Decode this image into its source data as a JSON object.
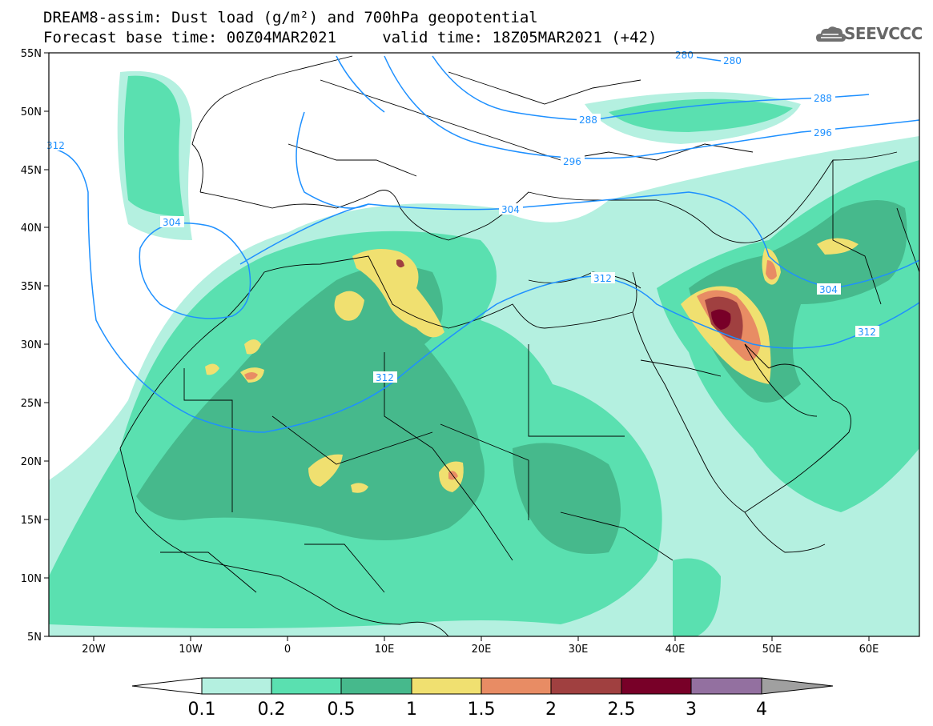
{
  "title": {
    "line1": "DREAM8-assim: Dust load (g/m²) and 700hPa geopotential",
    "line2": "Forecast base time: 00Z04MAR2021     valid time: 18Z05MAR2021 (+42)"
  },
  "logo": {
    "text": "SEEVCCC",
    "icon": "cloud-icon"
  },
  "axes": {
    "lat_labels": [
      "55N",
      "50N",
      "45N",
      "40N",
      "35N",
      "30N",
      "25N",
      "20N",
      "15N",
      "10N",
      "5N"
    ],
    "lon_labels": [
      "20W",
      "10W",
      "0",
      "10E",
      "20E",
      "30E",
      "40E",
      "50E",
      "60E"
    ]
  },
  "contour_labels": [
    "312",
    "304",
    "312",
    "312",
    "304",
    "296",
    "288",
    "288",
    "280",
    "280",
    "296",
    "304",
    "312"
  ],
  "colorbar": {
    "ticks": [
      "0.1",
      "0.2",
      "0.5",
      "1",
      "1.5",
      "2",
      "2.5",
      "3",
      "4"
    ],
    "colors": [
      "#b4f0e0",
      "#5ae0b0",
      "#46b98c",
      "#f0e070",
      "#e88c64",
      "#a04040",
      "#780028",
      "#9370a0",
      "#a0a0a0"
    ],
    "under_color": "#ffffff"
  },
  "map_colors": {
    "land_border": "#000000",
    "contour_line": "#1e90ff"
  }
}
